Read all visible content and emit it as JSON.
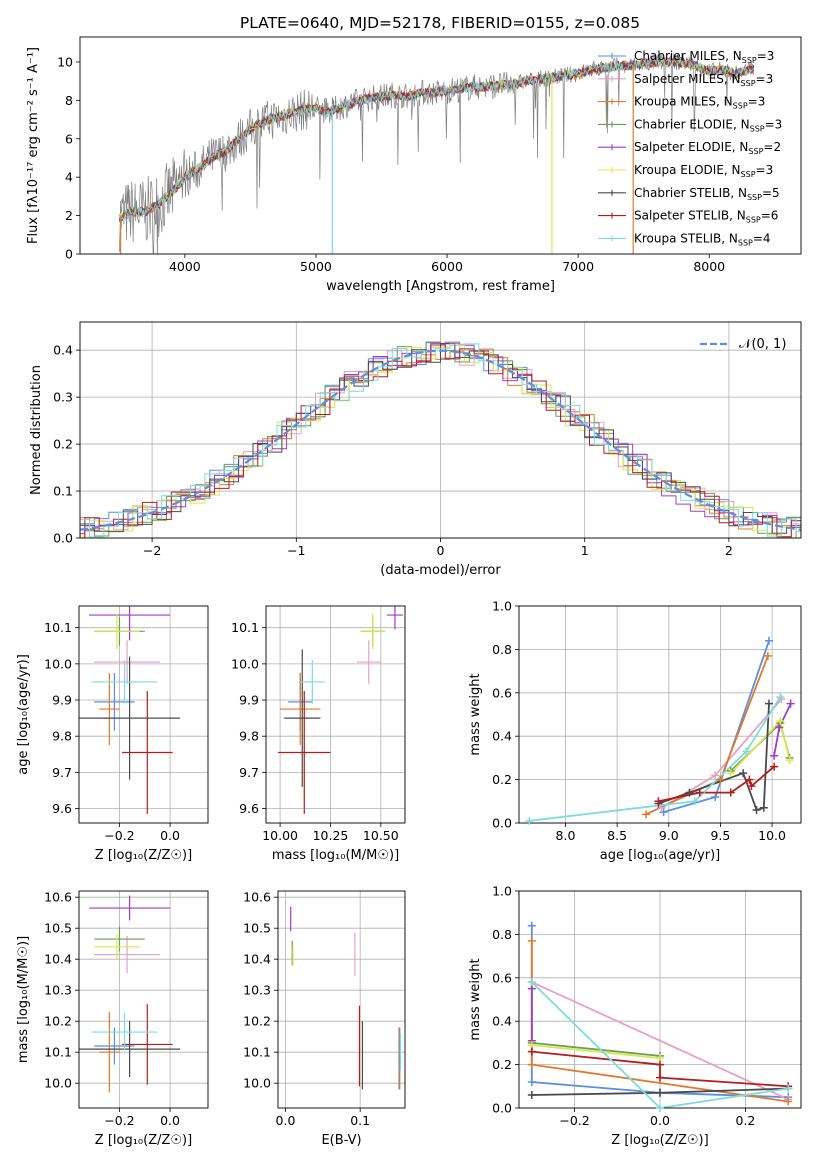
{
  "chart_data": [
    {
      "type": "line",
      "title": "PLATE=0640, MJD=52178, FIBERID=0155, z=0.085",
      "xlabel": "wavelength [Angstrom, rest frame]",
      "ylabel": "Flux [fλ10⁻¹⁷ erg cm⁻² s⁻¹ A⁻¹]",
      "xlim": [
        3200,
        8700
      ],
      "ylim": [
        0,
        11.3
      ],
      "xticks": [
        4000,
        5000,
        6000,
        7000,
        8000
      ],
      "yticks": [
        0,
        2,
        4,
        6,
        8,
        10
      ],
      "grid": false,
      "legend_position": "right",
      "observed_color": "#7f7f7f",
      "continuum": [
        [
          3500,
          1.9
        ],
        [
          3600,
          2.2
        ],
        [
          3700,
          2.2
        ],
        [
          3800,
          2.6
        ],
        [
          3900,
          3.2
        ],
        [
          4000,
          4.0
        ],
        [
          4100,
          4.4
        ],
        [
          4200,
          5.0
        ],
        [
          4300,
          5.3
        ],
        [
          4400,
          5.9
        ],
        [
          4500,
          6.5
        ],
        [
          4600,
          6.9
        ],
        [
          4700,
          7.1
        ],
        [
          4800,
          7.3
        ],
        [
          4900,
          7.5
        ],
        [
          5000,
          7.6
        ],
        [
          5100,
          7.4
        ],
        [
          5200,
          7.7
        ],
        [
          5300,
          7.9
        ],
        [
          5400,
          8.1
        ],
        [
          5500,
          8.2
        ],
        [
          5600,
          8.3
        ],
        [
          5700,
          8.2
        ],
        [
          5800,
          8.4
        ],
        [
          5900,
          8.4
        ],
        [
          6000,
          8.5
        ],
        [
          6100,
          8.6
        ],
        [
          6200,
          8.7
        ],
        [
          6300,
          8.7
        ],
        [
          6400,
          8.8
        ],
        [
          6500,
          8.8
        ],
        [
          6600,
          9.0
        ],
        [
          6700,
          9.1
        ],
        [
          6800,
          9.2
        ],
        [
          6900,
          9.3
        ],
        [
          7000,
          9.4
        ],
        [
          7100,
          9.6
        ],
        [
          7200,
          9.7
        ],
        [
          7300,
          9.8
        ],
        [
          7400,
          9.8
        ],
        [
          7500,
          9.9
        ],
        [
          7600,
          10.0
        ],
        [
          7700,
          10.0
        ],
        [
          7800,
          10.0
        ],
        [
          7900,
          9.8
        ],
        [
          8000,
          9.5
        ],
        [
          8100,
          9.6
        ],
        [
          8200,
          9.4
        ],
        [
          8300,
          9.6
        ]
      ],
      "series": [
        {
          "name": "Chabrier MILES, N$_{SSP}$=3",
          "label": "Chabrier MILES, N",
          "sub": "SSP",
          "suffix": "=3",
          "color": "#5b8ee6"
        },
        {
          "name": "Salpeter MILES, N$_{SSP}$=3",
          "label": "Salpeter MILES, N",
          "sub": "SSP",
          "suffix": "=3",
          "color": "#e8a0c8"
        },
        {
          "name": "Kroupa MILES, N$_{SSP}$=3",
          "label": "Kroupa MILES, N",
          "sub": "SSP",
          "suffix": "=3",
          "color": "#e07b2a"
        },
        {
          "name": "Chabrier ELODIE, N$_{SSP}$=3",
          "label": "Chabrier ELODIE, N",
          "sub": "SSP",
          "suffix": "=3",
          "color": "#6e9b5a"
        },
        {
          "name": "Salpeter ELODIE, N$_{SSP}$=2",
          "label": "Salpeter ELODIE, N",
          "sub": "SSP",
          "suffix": "=2",
          "color": "#a03cc8"
        },
        {
          "name": "Kroupa ELODIE, N$_{SSP}$=3",
          "label": "Kroupa ELODIE, N",
          "sub": "SSP",
          "suffix": "=3",
          "color": "#d8e84a"
        },
        {
          "name": "Chabrier STELIB, N$_{SSP}$=5",
          "label": "Chabrier STELIB, N",
          "sub": "SSP",
          "suffix": "=5",
          "color": "#4a4a4a"
        },
        {
          "name": "Salpeter STELIB, N$_{SSP}$=6",
          "label": "Salpeter STELIB, N",
          "sub": "SSP",
          "suffix": "=6",
          "color": "#b41e1e"
        },
        {
          "name": "Kroupa STELIB, N$_{SSP}$=4",
          "label": "Kroupa STELIB, N",
          "sub": "SSP",
          "suffix": "=4",
          "color": "#7edcdc"
        }
      ]
    },
    {
      "type": "bar",
      "xlabel": "(data-model)/error",
      "ylabel": "Normed distribution",
      "xlim": [
        -2.5,
        2.5
      ],
      "ylim": [
        0,
        0.46
      ],
      "xticks": [
        -2,
        -1,
        0,
        1,
        2
      ],
      "yticks": [
        0.0,
        0.1,
        0.2,
        0.3,
        0.4
      ],
      "grid": true,
      "legend": "𝒩(0, 1)",
      "legend_position": "top-right",
      "gaussian_color": "#5b8ee6",
      "bin_width": 0.1,
      "gaussian": {
        "mu": 0,
        "sigma": 1
      },
      "histogram_series": [
        "Chabrier MILES",
        "Salpeter MILES",
        "Kroupa MILES",
        "Chabrier ELODIE",
        "Salpeter ELODIE",
        "Kroupa ELODIE",
        "Chabrier STELIB",
        "Salpeter STELIB",
        "Kroupa STELIB"
      ]
    },
    {
      "type": "scatter",
      "xlabel": "Z [log₁₀(Z/Z☉)]",
      "ylabel": "age  [log₁₀(age/yr)]",
      "xlim": [
        -0.36,
        0.15
      ],
      "ylim": [
        9.56,
        10.16
      ],
      "xticks": [
        -0.2,
        0.0
      ],
      "yticks": [
        9.6,
        9.7,
        9.8,
        9.9,
        10.0,
        10.1
      ],
      "grid": true,
      "points": [
        {
          "series": "Chabrier MILES",
          "x": -0.22,
          "xerr": 0.08,
          "y": 9.895,
          "yerr": 0.08
        },
        {
          "series": "Salpeter MILES",
          "x": -0.17,
          "xerr": 0.13,
          "y": 10.005,
          "yerr": 0.06
        },
        {
          "series": "Kroupa MILES",
          "x": -0.24,
          "xerr": 0.04,
          "y": 9.875,
          "yerr": 0.1
        },
        {
          "series": "Chabrier ELODIE",
          "x": -0.2,
          "xerr": 0.1,
          "y": 10.09,
          "yerr": 0.04
        },
        {
          "series": "Salpeter ELODIE",
          "x": -0.16,
          "xerr": 0.16,
          "y": 10.135,
          "yerr": 0.07
        },
        {
          "series": "Kroupa ELODIE",
          "x": -0.21,
          "xerr": 0.09,
          "y": 10.09,
          "yerr": 0.05
        },
        {
          "series": "Chabrier STELIB",
          "x": -0.16,
          "xerr": 0.2,
          "y": 9.85,
          "yerr": 0.17
        },
        {
          "series": "Salpeter STELIB",
          "x": -0.09,
          "xerr": 0.1,
          "y": 9.755,
          "yerr": 0.17
        },
        {
          "series": "Kroupa STELIB",
          "x": -0.18,
          "xerr": 0.13,
          "y": 9.95,
          "yerr": 0.06
        }
      ]
    },
    {
      "type": "scatter",
      "xlabel": "mass [log₁₀(M/M☉)]",
      "xlim": [
        9.93,
        10.62
      ],
      "ylim": [
        9.56,
        10.16
      ],
      "xticks": [
        10.0,
        10.25,
        10.5
      ],
      "yticks": [
        9.6,
        9.7,
        9.8,
        9.9,
        10.0,
        10.1
      ],
      "grid": true,
      "points": [
        {
          "series": "Chabrier MILES",
          "x": 10.1,
          "xerr": 0.06,
          "y": 9.895,
          "yerr": 0.08
        },
        {
          "series": "Salpeter MILES",
          "x": 10.44,
          "xerr": 0.06,
          "y": 10.005,
          "yerr": 0.06
        },
        {
          "series": "Kroupa MILES",
          "x": 10.1,
          "xerr": 0.1,
          "y": 9.875,
          "yerr": 0.1
        },
        {
          "series": "Chabrier ELODIE",
          "x": 10.46,
          "xerr": 0.06,
          "y": 10.09,
          "yerr": 0.04
        },
        {
          "series": "Salpeter ELODIE",
          "x": 10.57,
          "xerr": 0.04,
          "y": 10.135,
          "yerr": 0.04
        },
        {
          "series": "Kroupa ELODIE",
          "x": 10.46,
          "xerr": 0.06,
          "y": 10.09,
          "yerr": 0.05
        },
        {
          "series": "Chabrier STELIB",
          "x": 10.11,
          "xerr": 0.09,
          "y": 9.85,
          "yerr": 0.19
        },
        {
          "series": "Salpeter STELIB",
          "x": 10.12,
          "xerr": 0.13,
          "y": 9.755,
          "yerr": 0.17
        },
        {
          "series": "Kroupa STELIB",
          "x": 10.16,
          "xerr": 0.06,
          "y": 9.95,
          "yerr": 0.06
        }
      ]
    },
    {
      "type": "line",
      "xlabel": "age  [log₁₀(age/yr)]",
      "ylabel": "mass weight",
      "xlim": [
        7.55,
        10.28
      ],
      "ylim": [
        0,
        1.0
      ],
      "xticks": [
        8.0,
        8.5,
        9.0,
        9.5,
        10.0
      ],
      "yticks": [
        0.0,
        0.2,
        0.4,
        0.6,
        0.8,
        1.0
      ],
      "grid": true,
      "series": [
        {
          "series": "Chabrier MILES",
          "x": [
            8.95,
            9.45,
            9.97
          ],
          "y": [
            0.05,
            0.12,
            0.84
          ]
        },
        {
          "series": "Salpeter MILES",
          "x": [
            8.93,
            9.45,
            10.09
          ],
          "y": [
            0.07,
            0.22,
            0.57
          ]
        },
        {
          "series": "Kroupa MILES",
          "x": [
            8.78,
            9.5,
            9.96
          ],
          "y": [
            0.04,
            0.2,
            0.77
          ]
        },
        {
          "series": "Chabrier ELODIE",
          "x": [
            9.6,
            10.08,
            10.17
          ],
          "y": [
            0.24,
            0.46,
            0.3
          ]
        },
        {
          "series": "Salpeter ELODIE",
          "x": [
            10.02,
            10.07,
            10.18
          ],
          "y": [
            0.31,
            0.44,
            0.55
          ]
        },
        {
          "series": "Kroupa ELODIE",
          "x": [
            9.6,
            10.08,
            10.17
          ],
          "y": [
            0.23,
            0.47,
            0.29
          ]
        },
        {
          "series": "Chabrier STELIB",
          "x": [
            8.9,
            9.2,
            9.72,
            9.85,
            9.92,
            9.97
          ],
          "y": [
            0.09,
            0.14,
            0.23,
            0.06,
            0.07,
            0.55
          ]
        },
        {
          "series": "Salpeter STELIB",
          "x": [
            8.9,
            9.3,
            9.6,
            9.78,
            9.8,
            10.02
          ],
          "y": [
            0.1,
            0.14,
            0.14,
            0.2,
            0.17,
            0.26
          ]
        },
        {
          "series": "Kroupa STELIB",
          "x": [
            7.65,
            9.25,
            9.75,
            10.08
          ],
          "y": [
            0.01,
            0.1,
            0.33,
            0.58
          ]
        }
      ]
    },
    {
      "type": "scatter",
      "xlabel": "Z [log₁₀(Z/Z☉)]",
      "ylabel": "mass [log₁₀(M/M☉)]",
      "xlim": [
        -0.36,
        0.15
      ],
      "ylim": [
        9.92,
        10.62
      ],
      "xticks": [
        -0.2,
        0.0
      ],
      "yticks": [
        10.0,
        10.1,
        10.2,
        10.3,
        10.4,
        10.5,
        10.6
      ],
      "grid": true,
      "points": [
        {
          "series": "Chabrier MILES",
          "x": -0.22,
          "xerr": 0.08,
          "y": 10.12,
          "yerr": 0.06
        },
        {
          "series": "Salpeter MILES",
          "x": -0.17,
          "xerr": 0.13,
          "y": 10.415,
          "yerr": 0.06
        },
        {
          "series": "Kroupa MILES",
          "x": -0.24,
          "xerr": 0.04,
          "y": 10.1,
          "yerr": 0.13
        },
        {
          "series": "Chabrier ELODIE",
          "x": -0.2,
          "xerr": 0.1,
          "y": 10.465,
          "yerr": 0.04
        },
        {
          "series": "Salpeter ELODIE",
          "x": -0.16,
          "xerr": 0.16,
          "y": 10.565,
          "yerr": 0.04
        },
        {
          "series": "Kroupa ELODIE",
          "x": -0.21,
          "xerr": 0.09,
          "y": 10.44,
          "yerr": 0.04
        },
        {
          "series": "Chabrier STELIB",
          "x": -0.16,
          "xerr": 0.2,
          "y": 10.11,
          "yerr": 0.09
        },
        {
          "series": "Salpeter STELIB",
          "x": -0.09,
          "xerr": 0.1,
          "y": 10.125,
          "yerr": 0.13
        },
        {
          "series": "Kroupa STELIB",
          "x": -0.18,
          "xerr": 0.13,
          "y": 10.165,
          "yerr": 0.06
        }
      ]
    },
    {
      "type": "scatter",
      "xlabel": "E(B-V)",
      "xlim": [
        -0.01,
        0.16
      ],
      "ylim": [
        9.92,
        10.62
      ],
      "xticks": [
        0.0,
        0.1
      ],
      "yticks": [
        10.0,
        10.1,
        10.2,
        10.3,
        10.4,
        10.5,
        10.6
      ],
      "grid": true,
      "points": [
        {
          "series": "Chabrier MILES",
          "x": 0.152,
          "y": 10.08,
          "yerr": 0.1
        },
        {
          "series": "Salpeter MILES",
          "x": 0.093,
          "y": 10.415,
          "yerr": 0.07
        },
        {
          "series": "Kroupa MILES",
          "x": 0.153,
          "y": 10.08,
          "yerr": 0.1
        },
        {
          "series": "Chabrier ELODIE",
          "x": 0.009,
          "y": 10.42,
          "yerr": 0.04
        },
        {
          "series": "Salpeter ELODIE",
          "x": 0.007,
          "y": 10.53,
          "yerr": 0.04
        },
        {
          "series": "Kroupa ELODIE",
          "x": 0.01,
          "y": 10.41,
          "yerr": 0.03
        },
        {
          "series": "Chabrier STELIB",
          "x": 0.103,
          "y": 10.09,
          "yerr": 0.11
        },
        {
          "series": "Salpeter STELIB",
          "x": 0.099,
          "y": 10.12,
          "yerr": 0.13
        },
        {
          "series": "Kroupa STELIB",
          "x": 0.154,
          "y": 10.1,
          "yerr": 0.06
        }
      ]
    },
    {
      "type": "line",
      "xlabel": "Z [log₁₀(Z/Z☉)]",
      "ylabel": "mass weight",
      "xlim": [
        -0.33,
        0.33
      ],
      "ylim": [
        0,
        1.0
      ],
      "xticks": [
        -0.2,
        0.0,
        0.2
      ],
      "yticks": [
        0.0,
        0.2,
        0.4,
        0.6,
        0.8,
        1.0
      ],
      "grid": true,
      "series": [
        {
          "series": "Chabrier MILES",
          "x": [
            -0.3,
            -0.3,
            0.0,
            0.3
          ],
          "y": [
            0.84,
            0.12,
            0.07,
            0.05
          ]
        },
        {
          "series": "Salpeter MILES",
          "x": [
            -0.3,
            0.3
          ],
          "y": [
            0.58,
            0.04
          ]
        },
        {
          "series": "Kroupa MILES",
          "x": [
            -0.3,
            -0.3,
            0.3
          ],
          "y": [
            0.77,
            0.2,
            0.03
          ]
        },
        {
          "series": "Chabrier ELODIE",
          "x": [
            -0.3,
            0.0
          ],
          "y": [
            0.3,
            0.24
          ]
        },
        {
          "series": "Salpeter ELODIE",
          "x": [
            -0.3,
            -0.3
          ],
          "y": [
            0.31,
            0.55
          ]
        },
        {
          "series": "Kroupa ELODIE",
          "x": [
            -0.3,
            0.0
          ],
          "y": [
            0.29,
            0.23
          ]
        },
        {
          "series": "Chabrier STELIB",
          "x": [
            -0.3,
            0.0,
            0.3
          ],
          "y": [
            0.06,
            0.07,
            0.09
          ]
        },
        {
          "series": "Salpeter STELIB",
          "x": [
            -0.3,
            0.0,
            0.0,
            0.3
          ],
          "y": [
            0.26,
            0.2,
            0.14,
            0.1
          ]
        },
        {
          "series": "Kroupa STELIB",
          "x": [
            -0.3,
            0.0,
            0.3
          ],
          "y": [
            0.58,
            0.0,
            0.09
          ]
        }
      ]
    }
  ]
}
